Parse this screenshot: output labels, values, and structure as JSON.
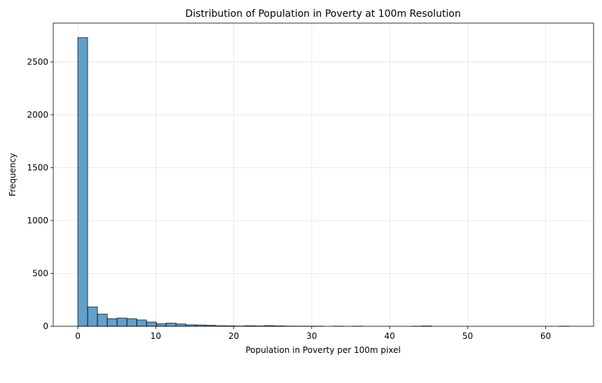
{
  "chart_data": {
    "type": "bar",
    "title": "Distribution of Population in Poverty at 100m Resolution",
    "xlabel": "Population in Poverty per 100m pixel",
    "ylabel": "Frequency",
    "xlim": [
      -3.15,
      66.15
    ],
    "ylim": [
      0,
      2867
    ],
    "x_ticks": [
      0,
      10,
      20,
      30,
      40,
      50,
      60
    ],
    "y_ticks": [
      0,
      500,
      1000,
      1500,
      2000,
      2500
    ],
    "grid": true,
    "bin_edges": [
      0,
      1.26,
      2.52,
      3.78,
      5.04,
      6.3,
      7.56,
      8.82,
      10.08,
      11.34,
      12.6,
      13.86,
      15.12,
      16.38,
      17.64,
      18.9,
      20.16,
      21.42,
      22.68,
      23.94,
      25.2,
      26.46,
      27.72,
      28.98,
      30.24,
      31.5,
      32.76,
      34.02,
      35.28,
      36.54,
      37.8,
      39.06,
      40.32,
      41.58,
      42.84,
      44.1,
      45.36,
      46.62,
      47.88,
      49.14,
      50.4,
      51.66,
      52.92,
      54.18,
      55.44,
      56.7,
      57.96,
      59.22,
      60.48,
      61.74,
      63.0
    ],
    "values": [
      2730,
      183,
      115,
      72,
      78,
      72,
      60,
      40,
      25,
      30,
      22,
      14,
      12,
      10,
      5,
      4,
      2,
      5,
      3,
      6,
      4,
      2,
      1,
      1,
      1,
      0,
      1,
      0,
      1,
      0,
      0,
      0,
      0,
      0,
      1,
      3,
      0,
      0,
      0,
      0,
      0,
      0,
      0,
      0,
      0,
      0,
      0,
      0,
      0,
      1
    ]
  }
}
